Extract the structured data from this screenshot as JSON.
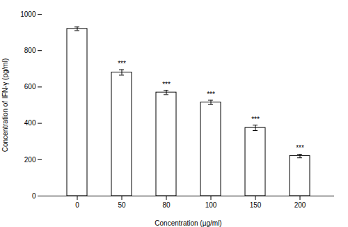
{
  "chart_data": {
    "type": "bar",
    "categories": [
      "0",
      "50",
      "80",
      "100",
      "150",
      "200"
    ],
    "values": [
      920,
      680,
      570,
      515,
      375,
      220
    ],
    "errors": [
      10,
      15,
      12,
      12,
      15,
      10
    ],
    "significance": [
      null,
      "***",
      "***",
      "***",
      "***",
      "***"
    ],
    "xlabel": "Concentration (µg/ml)",
    "ylabel": "Concentration of IFN-γ (pg/ml)",
    "ylim": [
      0,
      1000
    ],
    "yticks": [
      0,
      200,
      400,
      600,
      800,
      1000
    ],
    "color": "white",
    "grid": false
  }
}
